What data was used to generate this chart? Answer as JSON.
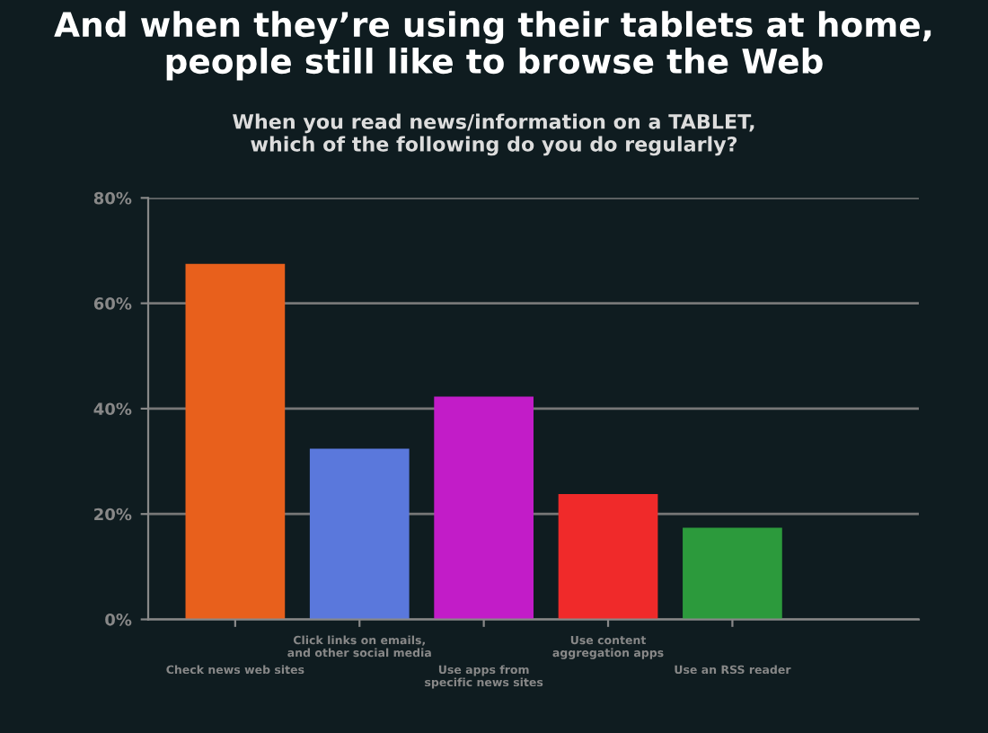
{
  "chart_data": {
    "type": "bar",
    "title": "And when they’re using their tablets at home,\npeople still like to browse the Web",
    "subtitle": "When you read news/information on a TABLET,\nwhich of the following do you do regularly?",
    "categories": [
      "Check news web sites",
      "Click links on emails,\nand other social media",
      "Use apps from\nspecific news sites",
      "Use content\naggregation apps",
      "Use an RSS reader"
    ],
    "values": [
      67.5,
      32.4,
      42.3,
      23.8,
      17.4
    ],
    "colors": [
      "#e8601c",
      "#5a78dc",
      "#c21cc8",
      "#f02a2a",
      "#2c9a3c"
    ],
    "ylim": [
      0,
      80
    ],
    "yticks": [
      {
        "value": 0,
        "label": "0%"
      },
      {
        "value": 20,
        "label": "20%"
      },
      {
        "value": 40,
        "label": "40%"
      },
      {
        "value": 60,
        "label": "60%"
      },
      {
        "value": 80,
        "label": "80%"
      }
    ],
    "grid": "y",
    "legend": false
  }
}
